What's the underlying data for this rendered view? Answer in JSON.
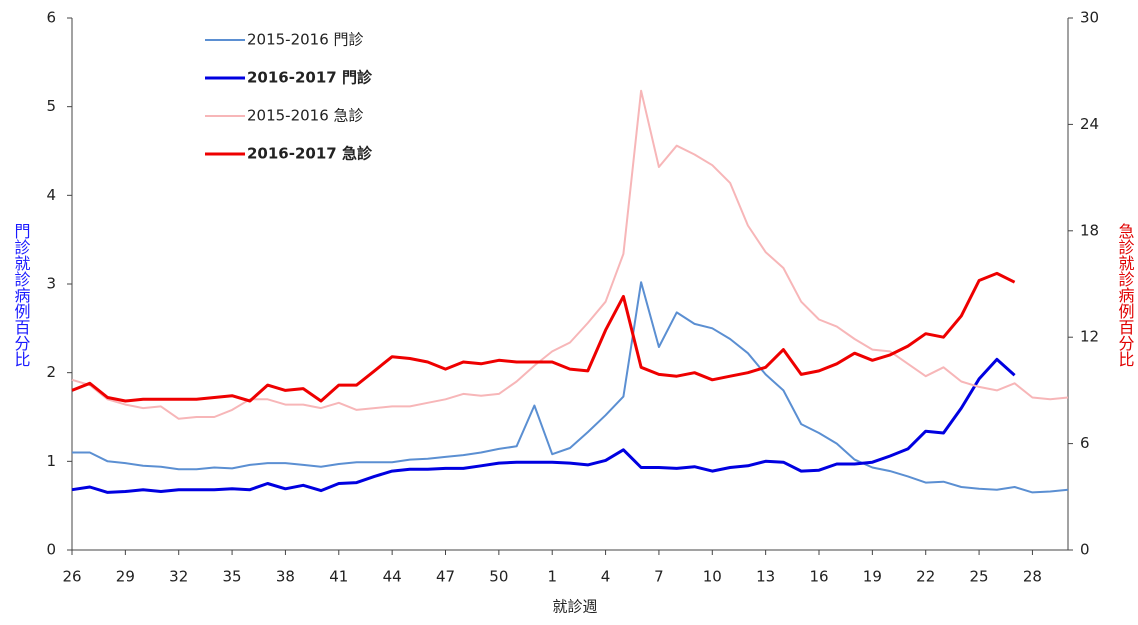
{
  "chart_data": {
    "type": "line",
    "x_label": "就診週",
    "y_label": "門診就診病例百分比",
    "y2_label": "急診就診病例百分比",
    "y_label_color": "#1a1aff",
    "y2_label_color": "#e00000",
    "categories": [
      "26",
      null,
      null,
      "29",
      null,
      null,
      "32",
      null,
      null,
      "35",
      null,
      null,
      "38",
      null,
      null,
      "41",
      null,
      null,
      "44",
      null,
      null,
      "47",
      null,
      null,
      "50",
      null,
      null,
      "1",
      null,
      null,
      "4",
      null,
      null,
      "7",
      null,
      null,
      "10",
      null,
      null,
      "13",
      null,
      null,
      "16",
      null,
      null,
      "19",
      null,
      null,
      "22",
      null,
      null,
      "25",
      null,
      null,
      "28",
      null,
      null
    ],
    "ylim": [
      0,
      6
    ],
    "yticks": [
      0,
      1,
      2,
      3,
      4,
      5,
      6
    ],
    "y2lim": [
      0,
      30
    ],
    "y2ticks": [
      0,
      6,
      12,
      18,
      24,
      30
    ],
    "legend": "top-left",
    "series": [
      {
        "name": "2015-2016 門診",
        "color": "#5b8fd2",
        "line_width": 2,
        "values": [
          1.1,
          1.1,
          1.0,
          0.98,
          0.95,
          0.94,
          0.91,
          0.91,
          0.93,
          0.92,
          0.96,
          0.98,
          0.98,
          0.96,
          0.94,
          0.97,
          0.99,
          0.99,
          0.99,
          1.02,
          1.03,
          1.05,
          1.07,
          1.1,
          1.14,
          1.17,
          1.63,
          1.08,
          1.15,
          1.33,
          1.52,
          1.73,
          3.02,
          2.29,
          2.68,
          2.55,
          2.5,
          2.38,
          2.22,
          1.98,
          1.8,
          1.42,
          1.32,
          1.2,
          1.02,
          0.93,
          0.89,
          0.83,
          0.76,
          0.77,
          0.71,
          0.69,
          0.68,
          0.71,
          0.65,
          0.66,
          0.68
        ]
      },
      {
        "name": "2016-2017 門診",
        "color": "#0000e0",
        "line_width": 3,
        "values": [
          0.68,
          0.71,
          0.65,
          0.66,
          0.68,
          0.66,
          0.68,
          0.68,
          0.68,
          0.69,
          0.68,
          0.75,
          0.69,
          0.73,
          0.67,
          0.75,
          0.76,
          0.83,
          0.89,
          0.91,
          0.91,
          0.92,
          0.92,
          0.95,
          0.98,
          0.99,
          0.99,
          0.99,
          0.98,
          0.96,
          1.01,
          1.13,
          0.93,
          0.93,
          0.92,
          0.94,
          0.89,
          0.93,
          0.95,
          1.0,
          0.99,
          0.89,
          0.9,
          0.97,
          0.97,
          0.99,
          1.06,
          1.14,
          1.34,
          1.32,
          1.6,
          1.93,
          2.15,
          1.97,
          null,
          null,
          null
        ]
      },
      {
        "name": "2015-2016 急診",
        "color": "#f7b6b8",
        "line_width": 2,
        "axis": "y2",
        "values": [
          9.6,
          9.3,
          8.5,
          8.2,
          8.0,
          8.1,
          7.4,
          7.5,
          7.5,
          7.9,
          8.5,
          8.5,
          8.2,
          8.2,
          8.0,
          8.3,
          7.9,
          8.0,
          8.1,
          8.1,
          8.3,
          8.5,
          8.8,
          8.7,
          8.8,
          9.5,
          10.4,
          11.2,
          11.7,
          12.8,
          14.0,
          16.7,
          25.9,
          21.6,
          22.8,
          22.3,
          21.7,
          20.7,
          18.3,
          16.8,
          15.9,
          14.0,
          13.0,
          12.6,
          11.9,
          11.3,
          11.2,
          10.5,
          9.8,
          10.3,
          9.5,
          9.2,
          9.0,
          9.4,
          8.6,
          8.5,
          8.6
        ]
      },
      {
        "name": "2016-2017 急診",
        "color": "#ee0000",
        "line_width": 3,
        "axis": "y2",
        "values": [
          9.0,
          9.4,
          8.6,
          8.4,
          8.5,
          8.5,
          8.5,
          8.5,
          8.6,
          8.7,
          8.4,
          9.3,
          9.0,
          9.1,
          8.4,
          9.3,
          9.3,
          10.1,
          10.9,
          10.8,
          10.6,
          10.2,
          10.6,
          10.5,
          10.7,
          10.6,
          10.6,
          10.6,
          10.2,
          10.1,
          12.4,
          14.3,
          10.3,
          9.9,
          9.8,
          10.0,
          9.6,
          9.8,
          10.0,
          10.3,
          11.3,
          9.9,
          10.1,
          10.5,
          11.1,
          10.7,
          11.0,
          11.5,
          12.2,
          12.0,
          13.2,
          15.2,
          15.6,
          15.1,
          null,
          null,
          null
        ]
      }
    ]
  }
}
